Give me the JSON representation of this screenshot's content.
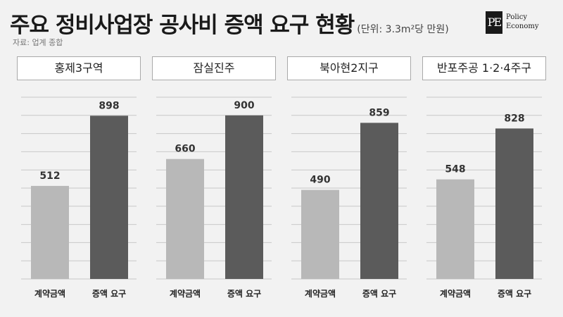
{
  "header": {
    "title": "주요 정비사업장 공사비 증액 요구 현황",
    "unit": "(단위: 3.3m²당 만원)",
    "source": "자료: 업계 종합",
    "logo_mark": "PE",
    "logo_line1": "Policy",
    "logo_line2": "Economy"
  },
  "colors": {
    "contract": "#b8b8b8",
    "increase": "#5b5b5b",
    "grid": "#c8c8c8"
  },
  "chart_data": [
    {
      "type": "bar",
      "title": "홍제3구역",
      "categories": [
        "계약금액",
        "증액 요구"
      ],
      "values": [
        512,
        898
      ],
      "ylim": [
        0,
        1000
      ],
      "grid": true
    },
    {
      "type": "bar",
      "title": "잠실진주",
      "categories": [
        "계약금액",
        "증액 요구"
      ],
      "values": [
        660,
        900
      ],
      "ylim": [
        0,
        1000
      ],
      "grid": true
    },
    {
      "type": "bar",
      "title": "북아현2지구",
      "categories": [
        "계약금액",
        "증액 요구"
      ],
      "values": [
        490,
        859
      ],
      "ylim": [
        0,
        1000
      ],
      "grid": true
    },
    {
      "type": "bar",
      "title": "반포주공 1·2·4주구",
      "categories": [
        "계약금액",
        "증액 요구"
      ],
      "values": [
        548,
        828
      ],
      "ylim": [
        0,
        1000
      ],
      "grid": true
    }
  ]
}
